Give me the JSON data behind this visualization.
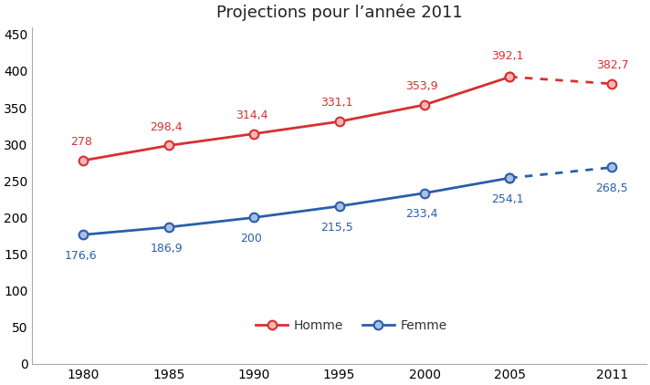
{
  "title": "Projections pour l’année 2011",
  "years_solid": [
    1980,
    1985,
    1990,
    1995,
    2000,
    2005
  ],
  "years_dotted": [
    2005,
    2011
  ],
  "homme_solid": [
    278,
    298.4,
    314.4,
    331.1,
    353.9,
    392.1
  ],
  "homme_dotted": [
    392.1,
    382.7
  ],
  "femme_solid": [
    176.6,
    186.9,
    200,
    215.5,
    233.4,
    254.1
  ],
  "femme_dotted": [
    254.1,
    268.5
  ],
  "homme_labels": [
    278,
    298.4,
    314.4,
    331.1,
    353.9,
    392.1,
    382.7
  ],
  "femme_labels": [
    176.6,
    186.9,
    200,
    215.5,
    233.4,
    254.1,
    268.5
  ],
  "all_years": [
    1980,
    1985,
    1990,
    1995,
    2000,
    2005,
    2011
  ],
  "homme_color": "#d63030",
  "femme_color": "#2a5eaa",
  "homme_face": "#f5b8b8",
  "femme_face": "#aabfe0",
  "ylim": [
    0,
    460
  ],
  "yticks": [
    0,
    50,
    100,
    150,
    200,
    250,
    300,
    350,
    400,
    450
  ],
  "xticks": [
    1980,
    1985,
    1990,
    1995,
    2000,
    2005,
    2011
  ],
  "legend_homme": "Homme",
  "legend_femme": "Femme",
  "bg_color": "#ffffff",
  "linewidth": 2.0,
  "markersize": 7,
  "label_fontsize": 9,
  "axis_fontsize": 10,
  "title_fontsize": 13,
  "xlim_left": 1977,
  "xlim_right": 2013
}
